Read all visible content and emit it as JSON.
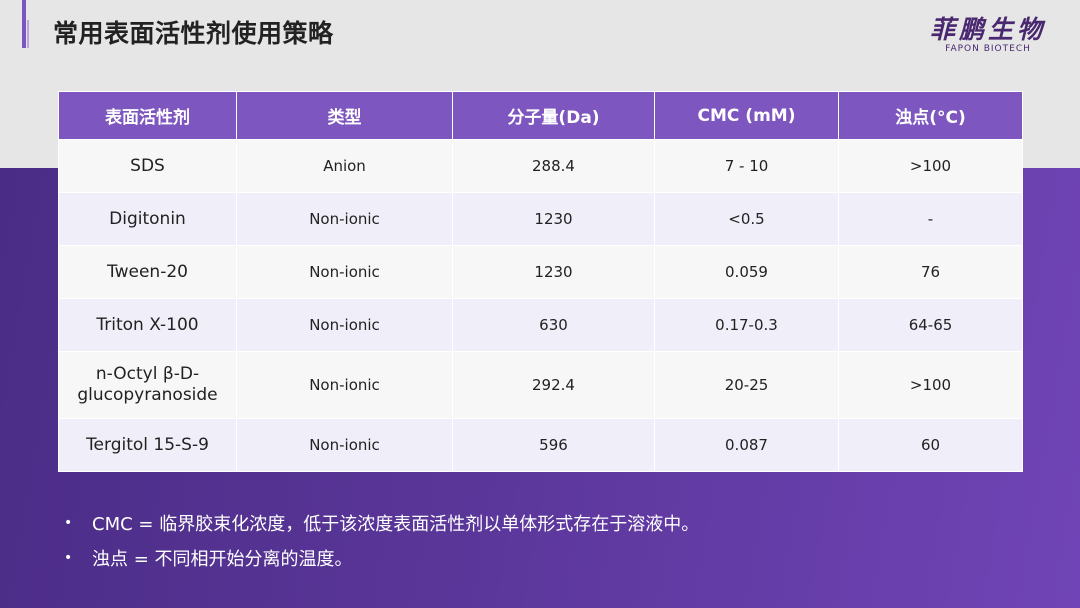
{
  "title": "常用表面活性剂使用策略",
  "logo": {
    "cn": "菲鹏生物",
    "en": "FAPON BIOTECH"
  },
  "colors": {
    "accent": "#7d56bf",
    "background_bottom": "#5a3699"
  },
  "table": {
    "headers": [
      "表面活性剂",
      "类型",
      "分子量(Da)",
      "CMC (mM)",
      "浊点(°C)"
    ],
    "rows": [
      [
        "SDS",
        "Anion",
        "288.4",
        "7 - 10",
        ">100"
      ],
      [
        "Digitonin",
        "Non-ionic",
        "1230",
        "<0.5",
        "-"
      ],
      [
        "Tween-20",
        "Non-ionic",
        "1230",
        "0.059",
        "76"
      ],
      [
        "Triton X-100",
        "Non-ionic",
        "630",
        "0.17-0.3",
        "64-65"
      ],
      [
        "n-Octyl β-D-glucopyranoside",
        "Non-ionic",
        "292.4",
        "20-25",
        ">100"
      ],
      [
        "Tergitol 15-S-9",
        "Non-ionic",
        "596",
        "0.087",
        "60"
      ]
    ]
  },
  "notes": [
    "CMC = 临界胶束化浓度，低于该浓度表面活性剂以单体形式存在于溶液中。",
    "浊点 = 不同相开始分离的温度。"
  ]
}
